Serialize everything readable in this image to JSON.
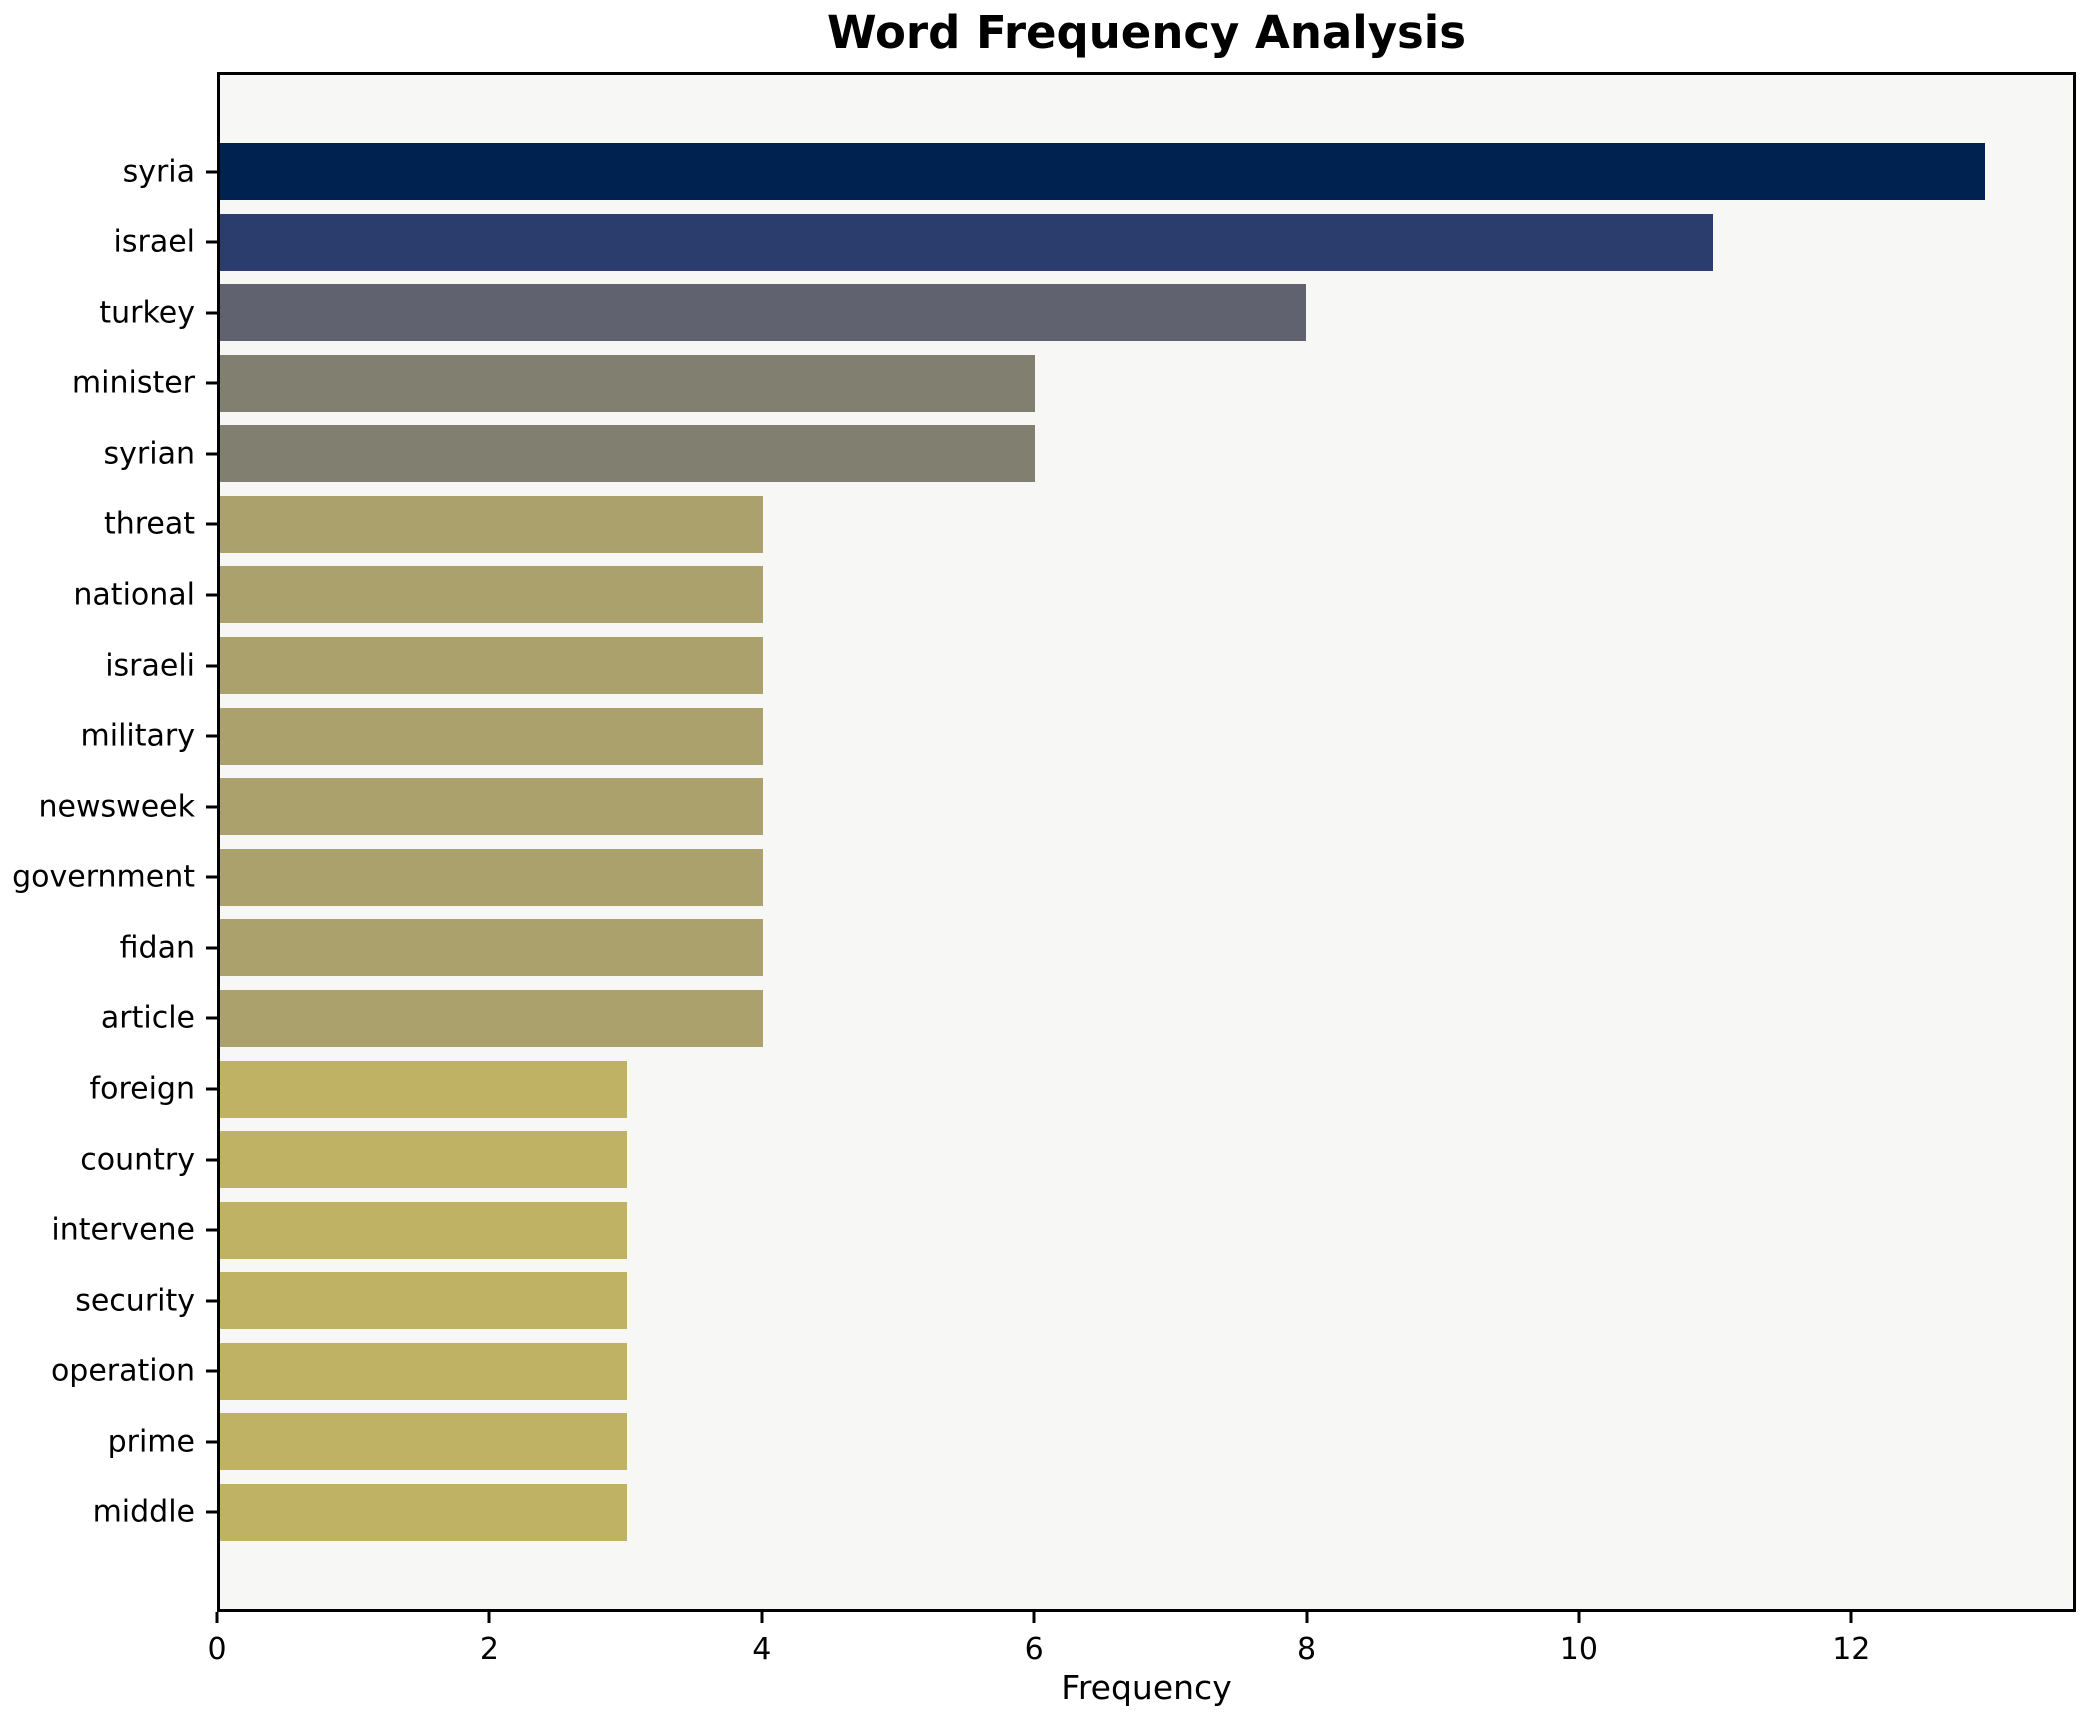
{
  "chart_data": {
    "type": "bar",
    "orientation": "horizontal",
    "title": "Word Frequency Analysis",
    "xlabel": "Frequency",
    "ylabel": "",
    "categories": [
      "syria",
      "israel",
      "turkey",
      "minister",
      "syrian",
      "threat",
      "national",
      "israeli",
      "military",
      "newsweek",
      "government",
      "fidan",
      "article",
      "foreign",
      "country",
      "intervene",
      "security",
      "operation",
      "prime",
      "middle"
    ],
    "values": [
      13,
      11,
      8,
      6,
      6,
      4,
      4,
      4,
      4,
      4,
      4,
      4,
      4,
      3,
      3,
      3,
      3,
      3,
      3,
      3
    ],
    "bar_colors": [
      "#002250",
      "#2b3d6d",
      "#606270",
      "#817f6f",
      "#817f6f",
      "#aaa16d",
      "#aaa16d",
      "#aaa16d",
      "#aaa16d",
      "#aaa16d",
      "#aaa16d",
      "#aaa16d",
      "#aaa16d",
      "#bfb265",
      "#bfb265",
      "#bfb265",
      "#bfb265",
      "#bfb265",
      "#bfb265",
      "#bfb265"
    ],
    "xlim": [
      0,
      13.65
    ],
    "xticks": [
      0,
      2,
      4,
      6,
      8,
      10,
      12
    ],
    "grid": false,
    "legend": null,
    "plot_bg": "#f7f7f6",
    "figure_bg": "#ffffff",
    "text_color": "#000000"
  }
}
